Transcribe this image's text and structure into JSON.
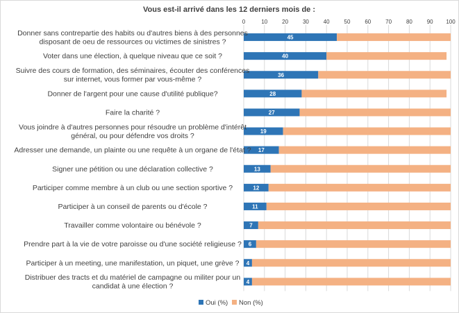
{
  "chart_data": {
    "type": "bar",
    "orientation": "horizontal",
    "stacked": true,
    "title": "Vous est-il arrivé dans les 12 derniers mois de :",
    "xlim": [
      0,
      100
    ],
    "x_ticks": [
      "0",
      "10",
      "20",
      "30",
      "40",
      "50",
      "60",
      "70",
      "80",
      "90",
      "100"
    ],
    "grid": true,
    "legend_position": "bottom",
    "categories": [
      [
        "Donner sans contrepartie des habits ou d'autres biens à des personnes",
        "disposant de oeu de ressources ou victimes de sinistres ?"
      ],
      [
        "Voter dans une élection, à quelque niveau que ce soit ?"
      ],
      [
        "Suivre des cours de formation, des séminaires, écouter des conférences",
        "sur internet, vous former par vous-même ?"
      ],
      [
        "Donner de l'argent pour une cause d'utilité publique?"
      ],
      [
        "Faire la charité ?"
      ],
      [
        "Vous joindre à d'autres personnes pour résoudre un problème d'intérêt",
        "général, ou pour défendre vos droits ?"
      ],
      [
        "Adresser une demande, un plainte ou une requête à un organe de l'état ?"
      ],
      [
        "Signer une pétition ou une déclaration collective ?"
      ],
      [
        "Participer comme membre à un club ou une section sportive ?"
      ],
      [
        "Participer à un conseil de parents ou d'école ?"
      ],
      [
        "Travailler comme volontaire ou bénévole ?"
      ],
      [
        "Prendre part à la vie de votre paroisse ou d'une société religieuse ?"
      ],
      [
        "Participer à un meeting, une manifestation, un piquet, une grève ?"
      ],
      [
        "Distribuer des tracts et du matériel de campagne ou militer pour un",
        "candidat à une élection ?"
      ]
    ],
    "series": [
      {
        "name": "Oui (%)",
        "color": "#2e75b6",
        "values": [
          45,
          40,
          36,
          28,
          27,
          19,
          17,
          13,
          12,
          11,
          7,
          6,
          4,
          4
        ],
        "labels": [
          "45",
          "40",
          "36",
          "28",
          "27",
          "19",
          "17",
          "13",
          "12",
          "11",
          "7",
          "6",
          "4",
          "4"
        ]
      },
      {
        "name": "Non (%)",
        "color": "#f4b183",
        "values": [
          55,
          58,
          64,
          70,
          73,
          81,
          83,
          87,
          88,
          89,
          93,
          94,
          96,
          96
        ]
      }
    ]
  }
}
